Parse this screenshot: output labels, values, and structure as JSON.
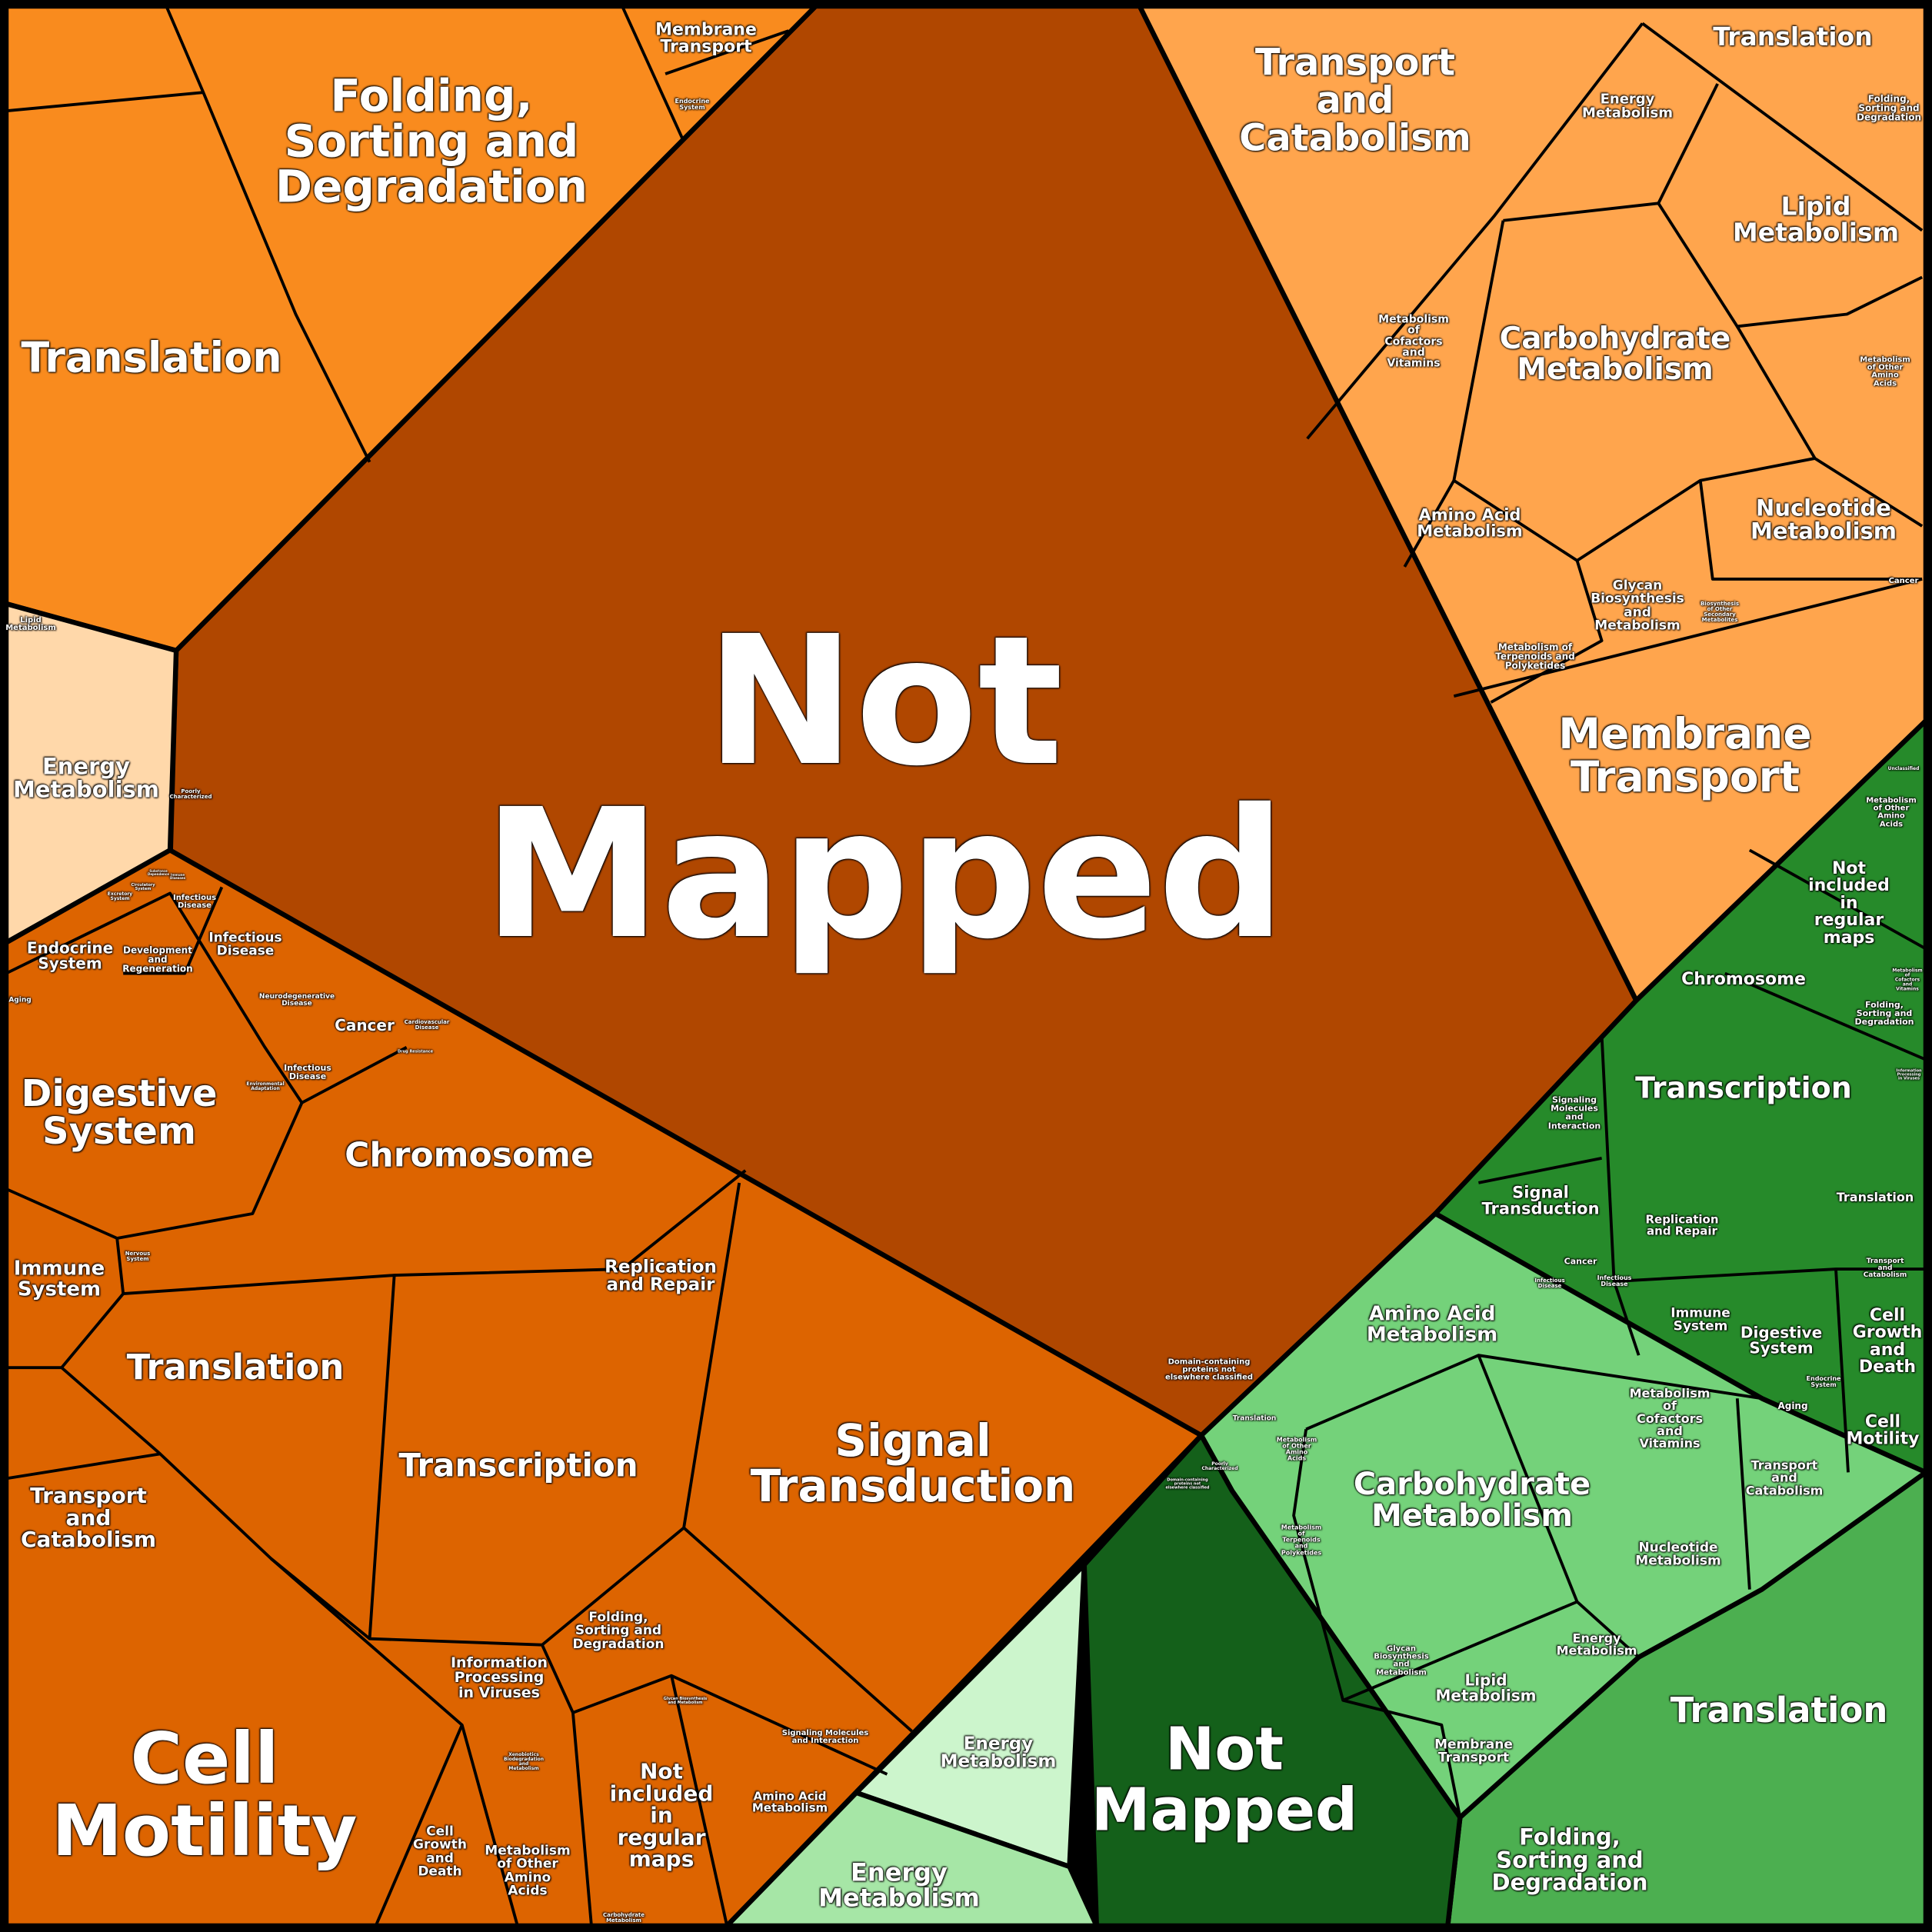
{
  "colors": {
    "not_mapped_orange": "#B04700",
    "orange_top_left": "#F98B1E",
    "orange_pale": "#FFD8AA",
    "orange_bottom_left": "#DD6400",
    "orange_light": "#FFA54D",
    "green_dark": "#268A2A",
    "green_light": "#74D27A",
    "green_medium": "#4CAF50",
    "not_mapped_green": "#14601A",
    "green_pale": "#CCF5CC",
    "green_soft": "#A6E6A6"
  },
  "not_mapped_orange": {
    "labels": [
      "Not\nMapped",
      "Poorly\nCharacterized",
      "Domain-containing\nproteins not\nelsewhere classified"
    ]
  },
  "orange_top_left": {
    "labels": [
      "Folding,\nSorting and\nDegradation",
      "Translation",
      "Membrane\nTransport",
      "Endocrine\nSystem"
    ]
  },
  "orange_pale": {
    "labels": [
      "Lipid\nMetabolism",
      "Energy\nMetabolism"
    ]
  },
  "orange_bottom_left": {
    "labels": [
      "Infectious\nDisease",
      "Endocrine\nSystem",
      "Development\nand\nRegeneration",
      "Infectious\nDisease",
      "Aging",
      "Neurodegenerative\nDisease",
      "Cancer",
      "Cardiovascular\nDisease",
      "Infectious\nDisease",
      "Digestive\nSystem",
      "Chromosome",
      "Immune\nSystem",
      "Nervous\nSystem",
      "Replication\nand Repair",
      "Translation",
      "Transcription",
      "Signal\nTransduction",
      "Transport\nand\nCatabolism",
      "Folding,\nSorting and\nDegradation",
      "Information\nProcessing\nin Viruses",
      "Cell\nMotility",
      "Cell\nGrowth\nand\nDeath",
      "Metabolism\nof Other\nAmino\nAcids",
      "Not\nincluded\nin\nregular\nmaps",
      "Amino Acid\nMetabolism",
      "Signaling Molecules\nand Interaction",
      "Xenobiotics\nBiodegradation\nand\nMetabolism",
      "Glycan Biosynthesis\nand Metabolism",
      "Carbohydrate\nMetabolism",
      "Drug Resistance",
      "Environmental\nAdaptation",
      "Excretory\nSystem",
      "Circulatory\nSystem",
      "Immune\nDiseases",
      "Substance\nDependence"
    ]
  },
  "orange_light": {
    "labels": [
      "Transport\nand\nCatabolism",
      "Translation",
      "Energy\nMetabolism",
      "Folding,\nSorting and\nDegradation",
      "Lipid\nMetabolism",
      "Metabolism\nof\nCofactors\nand\nVitamins",
      "Carbohydrate\nMetabolism",
      "Metabolism\nof Other\nAmino\nAcids",
      "Amino Acid\nMetabolism",
      "Nucleotide\nMetabolism",
      "Cancer",
      "Glycan\nBiosynthesis\nand\nMetabolism",
      "Biosynthesis\nof Other\nSecondary\nMetabolites",
      "Metabolism of\nTerpenoids and\nPolyketides",
      "Membrane\nTransport"
    ]
  },
  "green_dark": {
    "labels": [
      "Unclassified",
      "Metabolism\nof Other\nAmino\nAcids",
      "Not included\nin regular\nmaps",
      "Chromosome",
      "Folding,\nSorting and\nDegradation",
      "Metabolism\nof\nCofactors\nand\nVitamins",
      "Signaling\nMolecules\nand\nInteraction",
      "Transcription",
      "Signal\nTransduction",
      "Translation",
      "Replication\nand Repair",
      "Cancer",
      "Infectious\nDisease",
      "Infectious\nDisease",
      "Immune\nSystem",
      "Digestive\nSystem",
      "Cell\nGrowth\nand\nDeath",
      "Transport\nand\nCatabolism",
      "Endocrine\nSystem",
      "Aging",
      "Cell\nMotility",
      "Information\nProcessing\nin Viruses"
    ]
  },
  "green_light": {
    "labels": [
      "Amino Acid\nMetabolism",
      "Translation",
      "Metabolism\nof\nCofactors\nand\nVitamins",
      "Carbohydrate\nMetabolism",
      "Transport\nand\nCatabolism",
      "Metabolism\nof\nTerpenoids\nand\nPolyketides",
      "Nucleotide\nMetabolism",
      "Energy\nMetabolism",
      "Glycan\nBiosynthesis\nand\nMetabolism",
      "Lipid\nMetabolism",
      "Membrane\nTransport",
      "Metabolism\nof Other\nAmino\nAcids"
    ]
  },
  "green_medium": {
    "labels": [
      "Translation",
      "Folding,\nSorting and\nDegradation"
    ]
  },
  "not_mapped_green": {
    "labels": [
      "Not\nMapped",
      "Poorly\nCharacterized",
      "Domain-containing\nproteins not\nelsewhere classified"
    ]
  },
  "green_pale": {
    "labels": [
      "Energy\nMetabolism"
    ]
  },
  "green_soft": {
    "labels": [
      "Energy\nMetabolism"
    ]
  }
}
